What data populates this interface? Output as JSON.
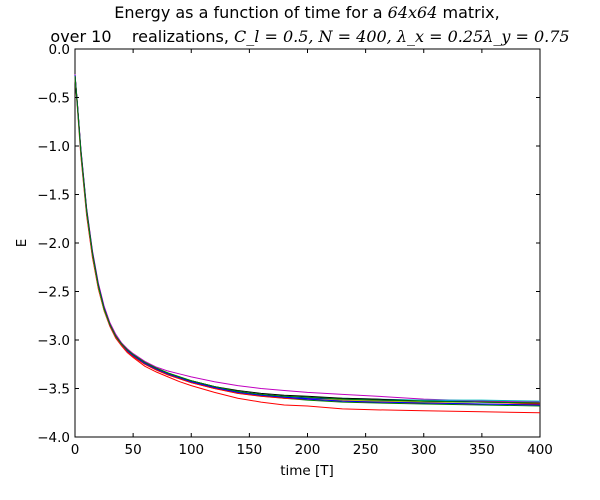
{
  "chart_data": {
    "type": "line",
    "title_line1_a": "Energy as a function of time for a ",
    "title_line1_math": "64x64",
    "title_line1_b": " matrix,",
    "title_line2_a": "over 10    realizations, ",
    "title_line2_math": "C_l = 0.5, N = 400, λ_x = 0.25λ_y = 0.75",
    "xlabel": "time [T]",
    "ylabel": "E",
    "xlim": [
      0,
      400
    ],
    "ylim": [
      -4.0,
      0.0
    ],
    "xticks": [
      0,
      50,
      100,
      150,
      200,
      250,
      300,
      350,
      400
    ],
    "xtick_labels": [
      "0",
      "50",
      "100",
      "150",
      "200",
      "250",
      "300",
      "350",
      "400"
    ],
    "yticks": [
      0.0,
      -0.5,
      -1.0,
      -1.5,
      -2.0,
      -2.5,
      -3.0,
      -3.5,
      -4.0
    ],
    "ytick_labels": [
      "0.0",
      "−0.5",
      "−1.0",
      "−1.5",
      "−2.0",
      "−2.5",
      "−3.0",
      "−3.5",
      "−4.0"
    ],
    "grid": false,
    "x": [
      0,
      2,
      5,
      10,
      15,
      20,
      25,
      30,
      35,
      40,
      45,
      50,
      60,
      70,
      80,
      90,
      100,
      120,
      140,
      160,
      180,
      200,
      230,
      260,
      300,
      350,
      400
    ],
    "series": [
      {
        "color": "#ff0000",
        "values": [
          -0.3,
          -0.6,
          -1.1,
          -1.72,
          -2.15,
          -2.47,
          -2.7,
          -2.86,
          -2.98,
          -3.06,
          -3.13,
          -3.18,
          -3.27,
          -3.33,
          -3.38,
          -3.43,
          -3.47,
          -3.54,
          -3.6,
          -3.64,
          -3.67,
          -3.68,
          -3.71,
          -3.72,
          -3.73,
          -3.74,
          -3.75
        ]
      },
      {
        "color": "#0000ff",
        "values": [
          -0.28,
          -0.57,
          -1.05,
          -1.67,
          -2.11,
          -2.44,
          -2.68,
          -2.85,
          -2.97,
          -3.05,
          -3.11,
          -3.16,
          -3.24,
          -3.3,
          -3.35,
          -3.39,
          -3.43,
          -3.49,
          -3.54,
          -3.57,
          -3.59,
          -3.6,
          -3.61,
          -3.62,
          -3.63,
          -3.63,
          -3.64
        ]
      },
      {
        "color": "#008000",
        "values": [
          -0.27,
          -0.56,
          -1.03,
          -1.65,
          -2.09,
          -2.42,
          -2.66,
          -2.83,
          -2.95,
          -3.03,
          -3.1,
          -3.15,
          -3.23,
          -3.29,
          -3.34,
          -3.38,
          -3.42,
          -3.48,
          -3.53,
          -3.57,
          -3.6,
          -3.62,
          -3.64,
          -3.65,
          -3.66,
          -3.67,
          -3.68
        ]
      },
      {
        "color": "#c000c0",
        "values": [
          -0.26,
          -0.55,
          -1.02,
          -1.64,
          -2.08,
          -2.41,
          -2.65,
          -2.82,
          -2.94,
          -3.03,
          -3.09,
          -3.14,
          -3.22,
          -3.28,
          -3.32,
          -3.35,
          -3.38,
          -3.43,
          -3.47,
          -3.5,
          -3.52,
          -3.54,
          -3.56,
          -3.58,
          -3.61,
          -3.63,
          -3.64
        ]
      },
      {
        "color": "#00bfbf",
        "values": [
          -0.29,
          -0.58,
          -1.07,
          -1.69,
          -2.12,
          -2.45,
          -2.69,
          -2.85,
          -2.97,
          -3.05,
          -3.12,
          -3.17,
          -3.25,
          -3.31,
          -3.36,
          -3.4,
          -3.44,
          -3.5,
          -3.54,
          -3.57,
          -3.58,
          -3.59,
          -3.6,
          -3.61,
          -3.62,
          -3.62,
          -3.63
        ]
      },
      {
        "color": "#bfbf00",
        "values": [
          -0.28,
          -0.57,
          -1.06,
          -1.68,
          -2.12,
          -2.45,
          -2.69,
          -2.85,
          -2.97,
          -3.05,
          -3.12,
          -3.17,
          -3.25,
          -3.31,
          -3.36,
          -3.4,
          -3.44,
          -3.5,
          -3.55,
          -3.58,
          -3.6,
          -3.61,
          -3.62,
          -3.63,
          -3.64,
          -3.64,
          -3.65
        ]
      },
      {
        "color": "#000000",
        "values": [
          -0.27,
          -0.56,
          -1.04,
          -1.66,
          -2.1,
          -2.43,
          -2.67,
          -2.84,
          -2.96,
          -3.04,
          -3.11,
          -3.16,
          -3.24,
          -3.3,
          -3.35,
          -3.39,
          -3.42,
          -3.48,
          -3.52,
          -3.55,
          -3.57,
          -3.58,
          -3.6,
          -3.61,
          -3.63,
          -3.64,
          -3.65
        ]
      },
      {
        "color": "#ff0000",
        "values": [
          -0.28,
          -0.57,
          -1.05,
          -1.67,
          -2.11,
          -2.44,
          -2.68,
          -2.85,
          -2.97,
          -3.05,
          -3.12,
          -3.17,
          -3.25,
          -3.31,
          -3.36,
          -3.4,
          -3.44,
          -3.5,
          -3.55,
          -3.58,
          -3.6,
          -3.61,
          -3.63,
          -3.64,
          -3.65,
          -3.66,
          -3.66
        ]
      },
      {
        "color": "#0000ff",
        "values": [
          -0.27,
          -0.56,
          -1.04,
          -1.66,
          -2.1,
          -2.43,
          -2.67,
          -2.84,
          -2.96,
          -3.04,
          -3.11,
          -3.16,
          -3.24,
          -3.3,
          -3.35,
          -3.39,
          -3.43,
          -3.49,
          -3.54,
          -3.57,
          -3.59,
          -3.61,
          -3.63,
          -3.64,
          -3.65,
          -3.66,
          -3.67
        ]
      },
      {
        "color": "#008000",
        "values": [
          -0.28,
          -0.57,
          -1.05,
          -1.67,
          -2.11,
          -2.44,
          -2.68,
          -2.84,
          -2.96,
          -3.04,
          -3.1,
          -3.15,
          -3.23,
          -3.29,
          -3.34,
          -3.38,
          -3.42,
          -3.48,
          -3.53,
          -3.56,
          -3.58,
          -3.59,
          -3.61,
          -3.62,
          -3.63,
          -3.64,
          -3.65
        ]
      }
    ]
  }
}
